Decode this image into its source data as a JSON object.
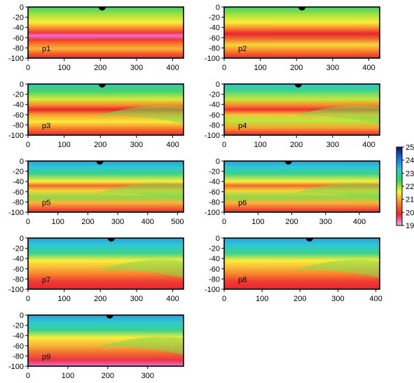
{
  "chart_data": {
    "type": "heatmap",
    "colorbar": {
      "ticks": [
        19,
        20,
        21,
        22,
        23,
        24,
        25
      ],
      "vmin": 19,
      "vmax": 25,
      "stops": [
        "#f6a8f2",
        "#e8242e",
        "#f7862b",
        "#f8f23c",
        "#35d25c",
        "#2fc8d6",
        "#1b6fe0",
        "#121558"
      ]
    },
    "panels": [
      {
        "label": "p1",
        "xlim": [
          0,
          430
        ],
        "ylim": [
          -100,
          0
        ],
        "xticks": [
          0,
          100,
          200,
          300,
          400
        ],
        "yticks": [
          0,
          -20,
          -40,
          -60,
          -80,
          -100
        ],
        "marker_x": 205,
        "profile": "pink"
      },
      {
        "label": "p2",
        "xlim": [
          0,
          430
        ],
        "ylim": [
          -100,
          0
        ],
        "xticks": [
          0,
          100,
          200,
          300,
          400
        ],
        "yticks": [
          0,
          -20,
          -40,
          -60,
          -80,
          -100
        ],
        "marker_x": 215,
        "profile": "red"
      },
      {
        "label": "p3",
        "xlim": [
          0,
          430
        ],
        "ylim": [
          -100,
          0
        ],
        "xticks": [
          0,
          100,
          200,
          300,
          400
        ],
        "yticks": [
          0,
          -20,
          -40,
          -60,
          -80,
          -100
        ],
        "marker_x": 205,
        "profile": "cool1"
      },
      {
        "label": "p4",
        "xlim": [
          0,
          430
        ],
        "ylim": [
          -100,
          0
        ],
        "xticks": [
          0,
          100,
          200,
          300,
          400
        ],
        "yticks": [
          0,
          -20,
          -40,
          -60,
          -80,
          -100
        ],
        "marker_x": 205,
        "profile": "cool2"
      },
      {
        "label": "p5",
        "xlim": [
          0,
          520
        ],
        "ylim": [
          -100,
          0
        ],
        "xticks": [
          0,
          100,
          200,
          300,
          400,
          500
        ],
        "yticks": [
          0,
          -20,
          -40,
          -60,
          -80,
          -100
        ],
        "marker_x": 240,
        "profile": "cool3"
      },
      {
        "label": "p6",
        "xlim": [
          0,
          460
        ],
        "ylim": [
          -100,
          0
        ],
        "xticks": [
          0,
          100,
          200,
          300,
          400
        ],
        "yticks": [
          0,
          -20,
          -40,
          -60,
          -80,
          -100
        ],
        "marker_x": 190,
        "profile": "cool3"
      },
      {
        "label": "p7",
        "xlim": [
          0,
          430
        ],
        "ylim": [
          -100,
          0
        ],
        "xticks": [
          0,
          100,
          200,
          300,
          400
        ],
        "yticks": [
          0,
          -20,
          -40,
          -60,
          -80,
          -100
        ],
        "marker_x": 230,
        "profile": "cool4"
      },
      {
        "label": "p8",
        "xlim": [
          0,
          410
        ],
        "ylim": [
          -100,
          0
        ],
        "xticks": [
          0,
          100,
          200,
          300,
          400
        ],
        "yticks": [
          0,
          -20,
          -40,
          -60,
          -80,
          -100
        ],
        "marker_x": 225,
        "profile": "cool4"
      },
      {
        "label": "p9",
        "xlim": [
          0,
          390
        ],
        "ylim": [
          -100,
          0
        ],
        "xticks": [
          0,
          100,
          200,
          300
        ],
        "yticks": [
          0,
          -20,
          -40,
          -60,
          -80,
          -100
        ],
        "marker_x": 205,
        "profile": "cool5"
      }
    ]
  }
}
